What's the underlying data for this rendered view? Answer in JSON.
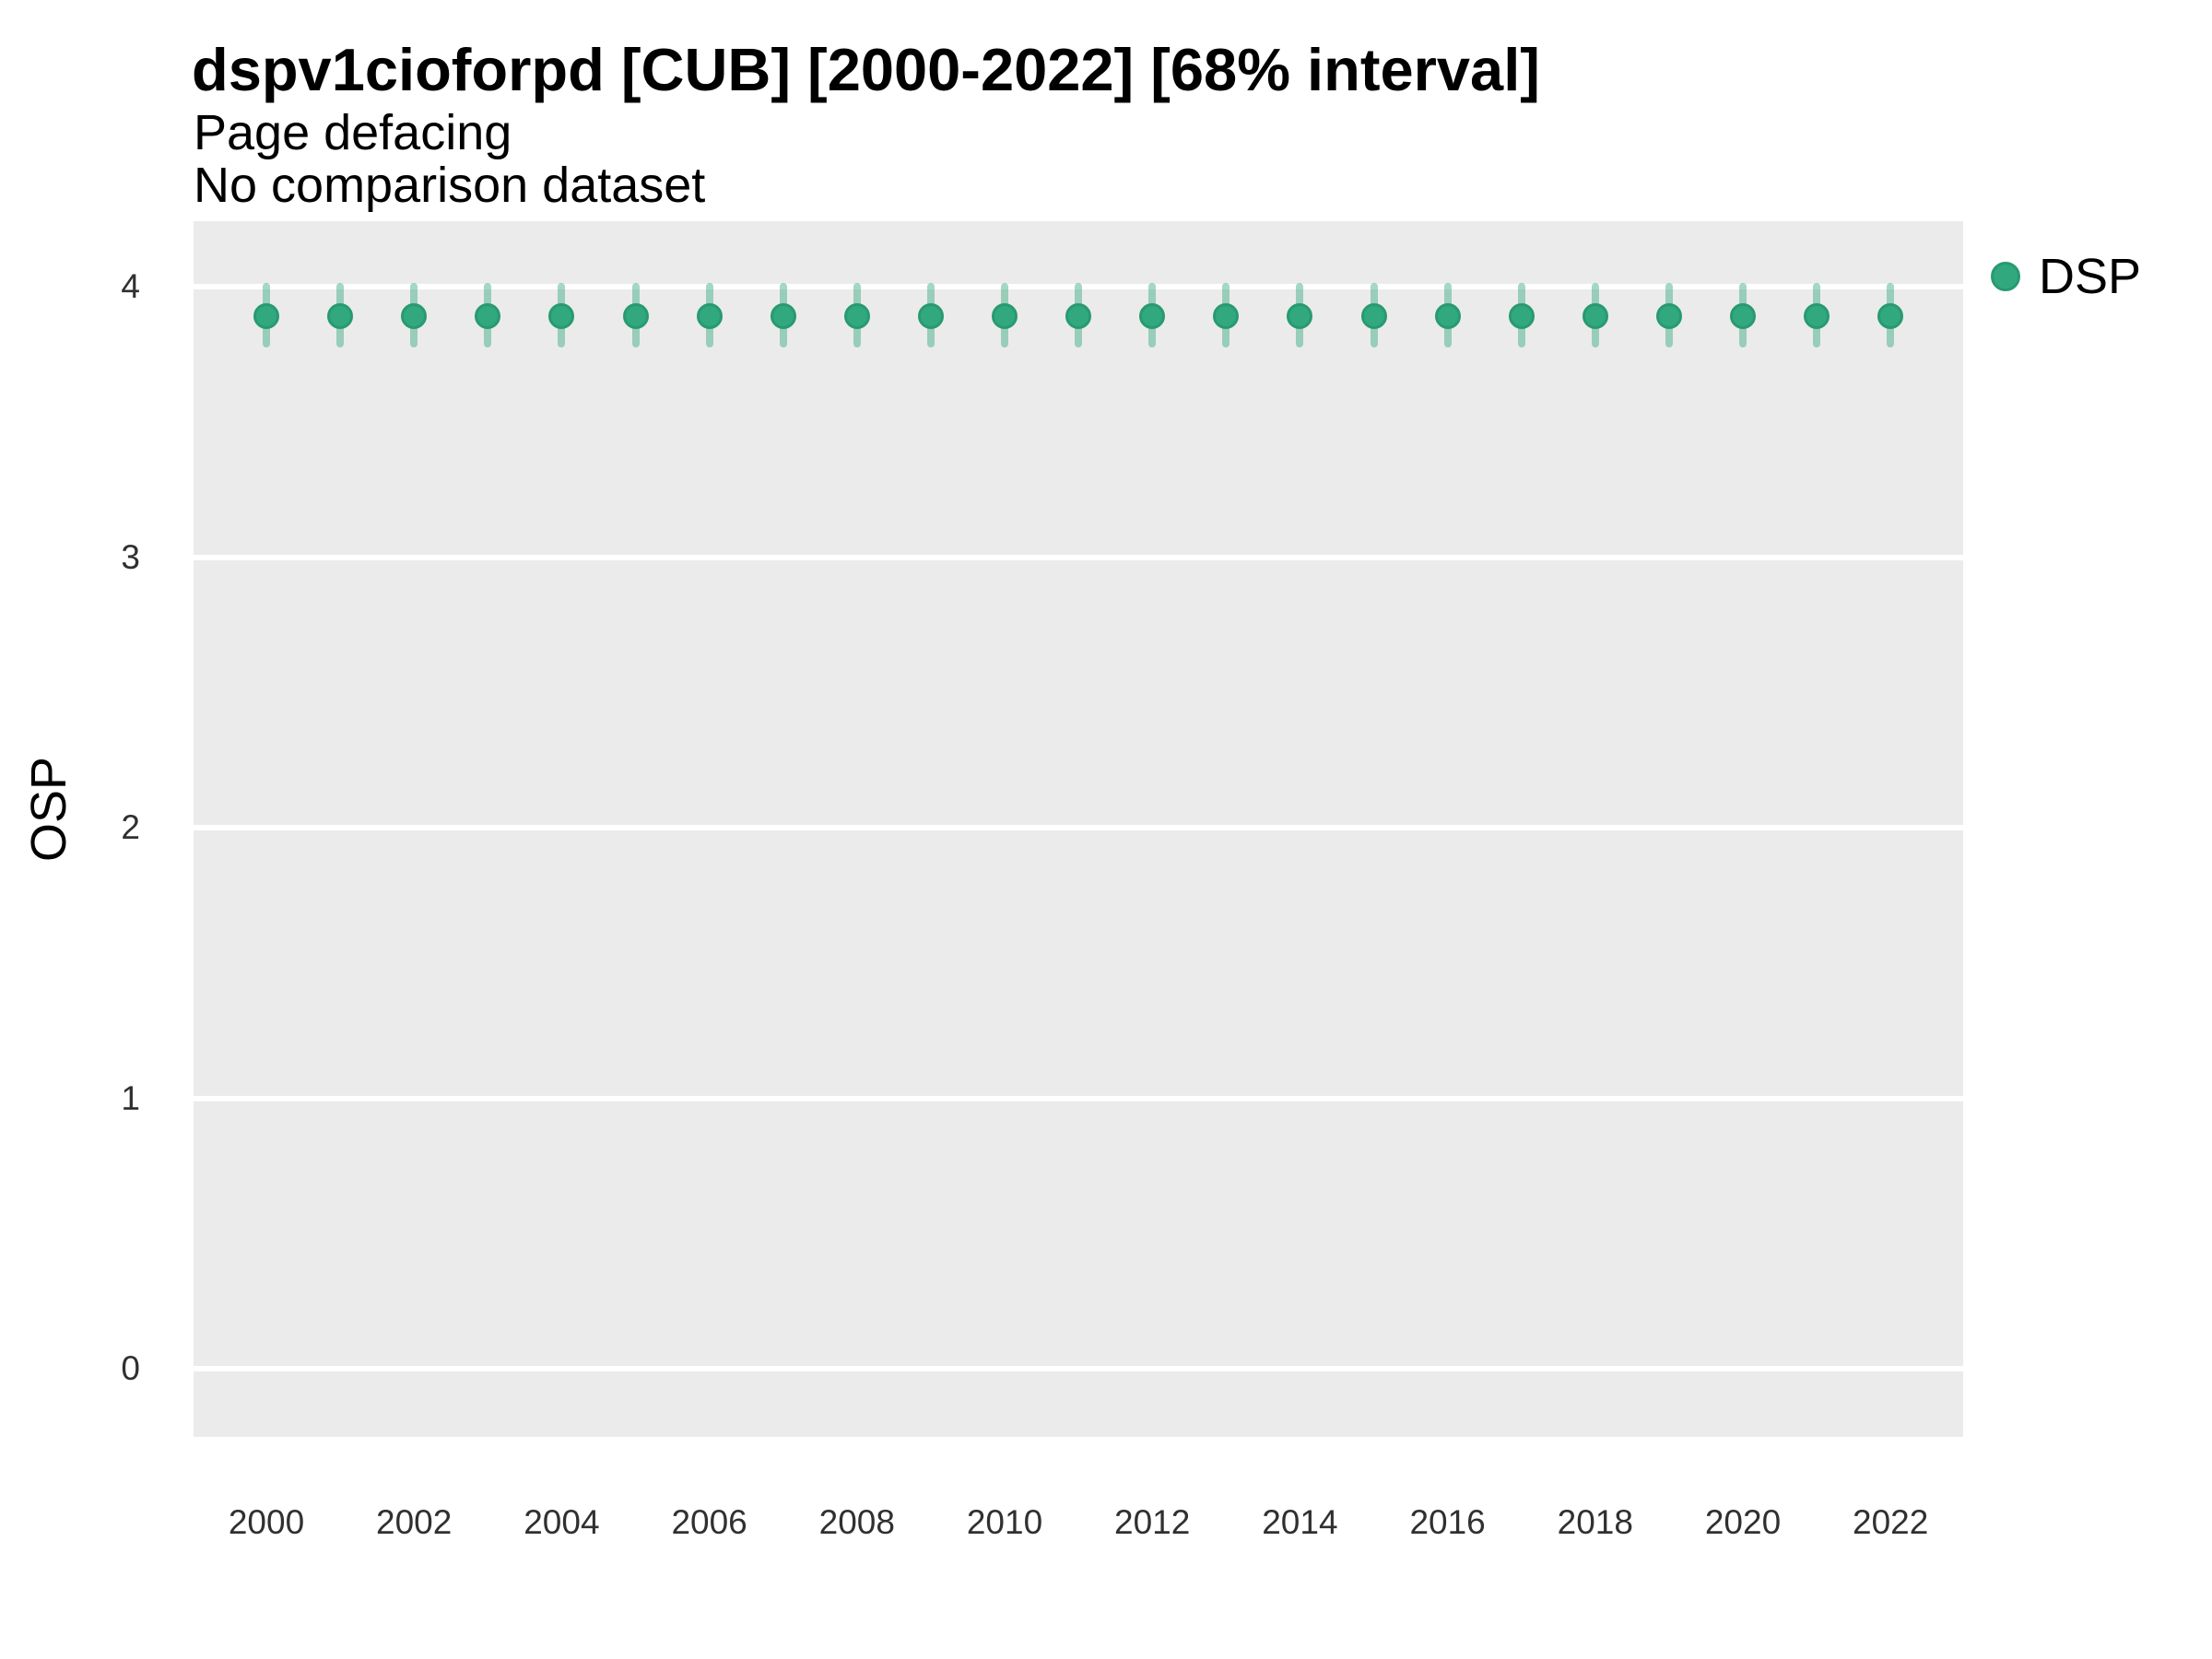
{
  "title": "dspv1cioforpd [CUB] [2000-2022] [68% interval]",
  "subtitle_line1": "Page defacing",
  "subtitle_line2": "No comparison dataset",
  "colors": {
    "point_fill": "#32a87e",
    "point_border": "#289a71",
    "interval_bar": "rgba(50,168,126,0.45)",
    "panel_background": "#ebebeb",
    "gridline": "#ffffff"
  },
  "legend": {
    "position": "right-top",
    "items": [
      {
        "label": "DSP",
        "swatch": "point"
      }
    ]
  },
  "chart_data": {
    "type": "scatter",
    "title": "dspv1cioforpd [CUB] [2000-2022] [68% interval]",
    "subtitle": [
      "Page defacing",
      "No comparison dataset"
    ],
    "interval_label": "68% interval",
    "xlabel": "",
    "ylabel": "OSP",
    "ylim": [
      -0.25,
      4.25
    ],
    "yticks": [
      0,
      1,
      2,
      3,
      4
    ],
    "xticks": [
      2000,
      2002,
      2004,
      2006,
      2008,
      2010,
      2012,
      2014,
      2016,
      2018,
      2020,
      2022
    ],
    "grid": "horizontal-major-white-on-gray",
    "legend_position": "right-top",
    "series": [
      {
        "name": "DSP",
        "x": [
          2000,
          2001,
          2002,
          2003,
          2004,
          2005,
          2006,
          2007,
          2008,
          2009,
          2010,
          2011,
          2012,
          2013,
          2014,
          2015,
          2016,
          2017,
          2018,
          2019,
          2020,
          2021,
          2022
        ],
        "y": [
          3.89,
          3.89,
          3.89,
          3.89,
          3.89,
          3.89,
          3.89,
          3.89,
          3.89,
          3.89,
          3.89,
          3.89,
          3.89,
          3.89,
          3.89,
          3.89,
          3.89,
          3.89,
          3.89,
          3.89,
          3.89,
          3.89,
          3.89
        ],
        "y_lo": [
          3.79,
          3.79,
          3.79,
          3.79,
          3.79,
          3.79,
          3.79,
          3.79,
          3.79,
          3.79,
          3.79,
          3.79,
          3.79,
          3.79,
          3.79,
          3.79,
          3.79,
          3.79,
          3.79,
          3.79,
          3.79,
          3.79,
          3.79
        ],
        "y_hi": [
          4.0,
          4.0,
          4.0,
          4.0,
          4.0,
          4.0,
          4.0,
          4.0,
          4.0,
          4.0,
          4.0,
          4.0,
          4.0,
          4.0,
          4.0,
          4.0,
          4.0,
          4.0,
          4.0,
          4.0,
          4.0,
          4.0,
          4.0
        ]
      }
    ]
  }
}
